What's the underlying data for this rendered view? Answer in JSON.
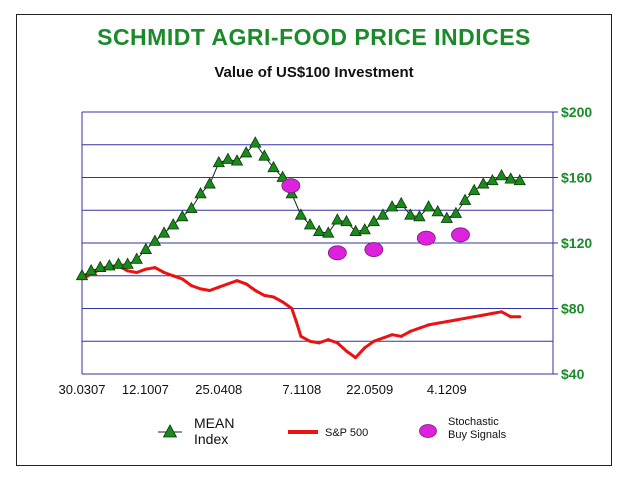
{
  "chart_data": {
    "type": "line",
    "title": "SCHMIDT AGRI-FOOD PRICE INDICES",
    "subtitle": "Value of US$100 Investment",
    "ylim": [
      40,
      200
    ],
    "y_ticks": [
      {
        "value": 200,
        "label": "$200"
      },
      {
        "value": 160,
        "label": "$160"
      },
      {
        "value": 120,
        "label": "$120"
      },
      {
        "value": 80,
        "label": "$80"
      },
      {
        "value": 40,
        "label": "$40"
      }
    ],
    "gridlines_y": [
      60,
      80,
      100,
      120,
      140,
      160,
      180,
      200
    ],
    "x_tick_labels": [
      {
        "t": 0,
        "label": "30.0307"
      },
      {
        "t": 0.139,
        "label": "12.1007"
      },
      {
        "t": 0.3,
        "label": "25.0408"
      },
      {
        "t": 0.482,
        "label": "7.1108"
      },
      {
        "t": 0.631,
        "label": "22.0509"
      },
      {
        "t": 0.8,
        "label": "4.1209"
      }
    ],
    "colors": {
      "mean": "#1a8a1a",
      "sp500": "#ee1111",
      "signals": "#dd22dd",
      "grid": "#3333aa",
      "title": "#1a8a2a"
    },
    "series": [
      {
        "name": "MEAN Index",
        "legend": [
          "MEAN",
          "Index"
        ],
        "marker": "triangle",
        "points": [
          [
            0,
            100
          ],
          [
            0.02,
            103
          ],
          [
            0.04,
            105
          ],
          [
            0.06,
            106
          ],
          [
            0.08,
            107
          ],
          [
            0.1,
            107
          ],
          [
            0.12,
            110
          ],
          [
            0.14,
            116
          ],
          [
            0.16,
            121
          ],
          [
            0.18,
            126
          ],
          [
            0.2,
            131
          ],
          [
            0.22,
            136
          ],
          [
            0.24,
            141
          ],
          [
            0.26,
            150
          ],
          [
            0.28,
            156
          ],
          [
            0.3,
            169
          ],
          [
            0.32,
            171
          ],
          [
            0.34,
            170
          ],
          [
            0.36,
            175
          ],
          [
            0.38,
            181
          ],
          [
            0.4,
            173
          ],
          [
            0.42,
            166
          ],
          [
            0.44,
            160
          ],
          [
            0.46,
            150
          ],
          [
            0.48,
            137
          ],
          [
            0.5,
            131
          ],
          [
            0.52,
            127
          ],
          [
            0.54,
            126
          ],
          [
            0.56,
            134
          ],
          [
            0.58,
            133
          ],
          [
            0.6,
            127
          ],
          [
            0.62,
            128
          ],
          [
            0.64,
            133
          ],
          [
            0.66,
            137
          ],
          [
            0.68,
            142
          ],
          [
            0.7,
            144
          ],
          [
            0.72,
            137
          ],
          [
            0.74,
            136
          ],
          [
            0.76,
            142
          ],
          [
            0.78,
            139
          ],
          [
            0.8,
            135
          ],
          [
            0.82,
            138
          ],
          [
            0.84,
            146
          ],
          [
            0.86,
            152
          ],
          [
            0.88,
            156
          ],
          [
            0.9,
            158
          ],
          [
            0.92,
            161
          ],
          [
            0.94,
            159
          ],
          [
            0.96,
            158
          ]
        ]
      },
      {
        "name": "S&P 500",
        "legend": [
          "S&P 500"
        ],
        "marker": "line",
        "points": [
          [
            0,
            98
          ],
          [
            0.02,
            101
          ],
          [
            0.04,
            104
          ],
          [
            0.06,
            105
          ],
          [
            0.08,
            106
          ],
          [
            0.1,
            103
          ],
          [
            0.12,
            102
          ],
          [
            0.14,
            104
          ],
          [
            0.16,
            105
          ],
          [
            0.18,
            102
          ],
          [
            0.2,
            100
          ],
          [
            0.22,
            98
          ],
          [
            0.24,
            94
          ],
          [
            0.26,
            92
          ],
          [
            0.28,
            91
          ],
          [
            0.3,
            93
          ],
          [
            0.32,
            95
          ],
          [
            0.34,
            97
          ],
          [
            0.36,
            95
          ],
          [
            0.38,
            91
          ],
          [
            0.4,
            88
          ],
          [
            0.42,
            87
          ],
          [
            0.44,
            84
          ],
          [
            0.46,
            80
          ],
          [
            0.47,
            72
          ],
          [
            0.48,
            63
          ],
          [
            0.5,
            60
          ],
          [
            0.52,
            59
          ],
          [
            0.54,
            61
          ],
          [
            0.56,
            59
          ],
          [
            0.58,
            54
          ],
          [
            0.6,
            50
          ],
          [
            0.62,
            56
          ],
          [
            0.64,
            60
          ],
          [
            0.66,
            62
          ],
          [
            0.68,
            64
          ],
          [
            0.7,
            63
          ],
          [
            0.72,
            66
          ],
          [
            0.74,
            68
          ],
          [
            0.76,
            70
          ],
          [
            0.78,
            71
          ],
          [
            0.8,
            72
          ],
          [
            0.82,
            73
          ],
          [
            0.84,
            74
          ],
          [
            0.86,
            75
          ],
          [
            0.88,
            76
          ],
          [
            0.9,
            77
          ],
          [
            0.92,
            78
          ],
          [
            0.94,
            75
          ],
          [
            0.96,
            75
          ]
        ]
      }
    ],
    "signals": {
      "name": "Stochastic Buy Signals",
      "legend": [
        "Stochastic",
        "Buy Signals"
      ],
      "points": [
        [
          0.458,
          155
        ],
        [
          0.56,
          114
        ],
        [
          0.64,
          116
        ],
        [
          0.755,
          123
        ],
        [
          0.83,
          125
        ]
      ]
    }
  }
}
